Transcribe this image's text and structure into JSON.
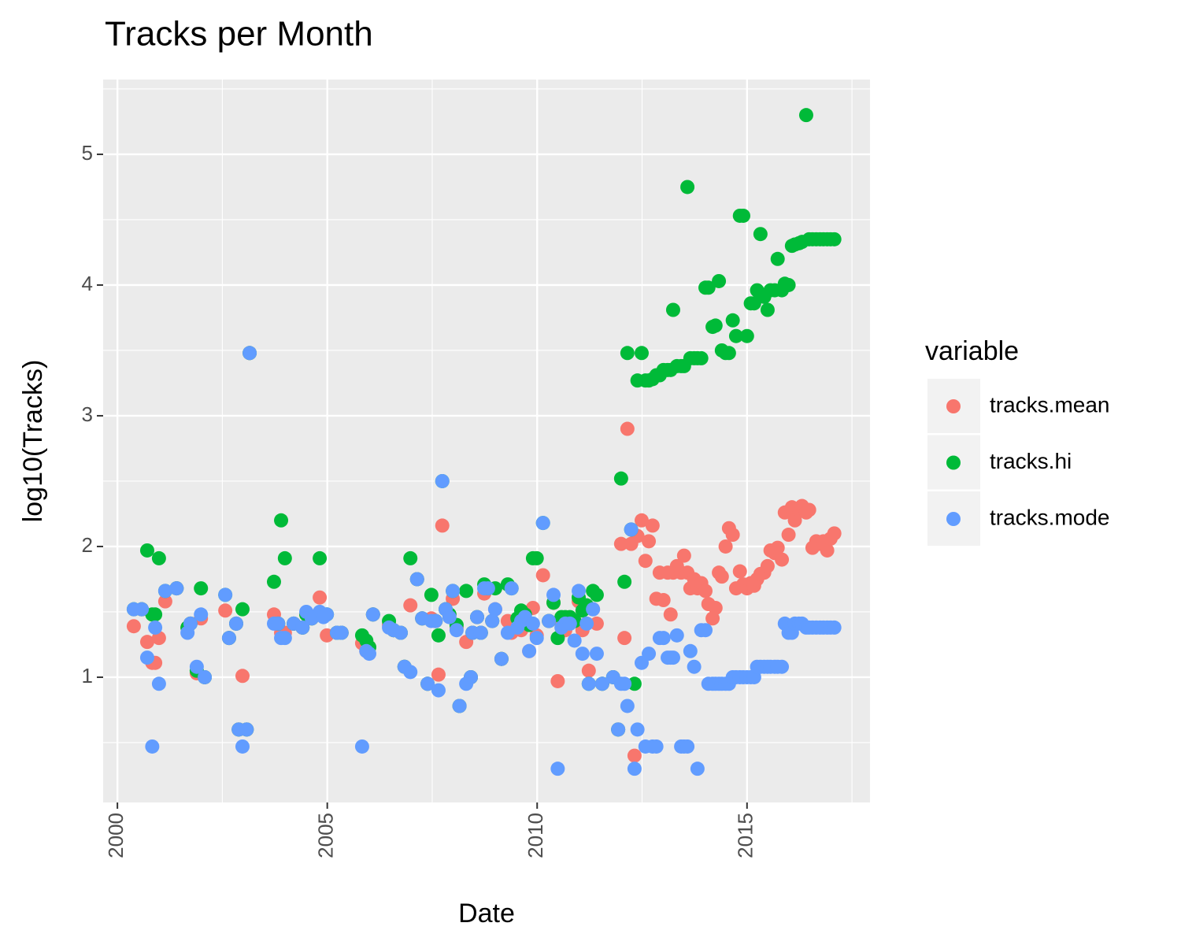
{
  "chart_data": {
    "type": "scatter",
    "title": "Tracks per Month",
    "x_label": "Date",
    "y_label": "log10(Tracks)",
    "legend_title": "variable",
    "legend_position": "right",
    "grid": true,
    "xlim": [
      1999.66,
      2017.93
    ],
    "ylim": [
      0.042,
      5.572
    ],
    "xticks": [
      2000,
      2005,
      2010,
      2015
    ],
    "yticks": [
      1,
      2,
      3,
      4,
      5
    ],
    "x": [
      2000.39,
      2000.58,
      2000.71,
      2000.83,
      2000.9,
      2000.99,
      2001.14,
      2001.41,
      2001.67,
      2001.74,
      2001.89,
      2001.99,
      2002.08,
      2002.57,
      2002.66,
      2002.83,
      2002.89,
      2002.98,
      2003.08,
      2003.15,
      2003.73,
      2003.83,
      2003.9,
      2003.99,
      2004.2,
      2004.41,
      2004.5,
      2004.63,
      2004.82,
      2004.91,
      2004.99,
      2005.23,
      2005.34,
      2005.83,
      2005.93,
      2006.0,
      2006.09,
      2006.47,
      2006.58,
      2006.75,
      2006.84,
      2006.98,
      2007.14,
      2007.26,
      2007.39,
      2007.48,
      2007.58,
      2007.65,
      2007.74,
      2007.82,
      2007.91,
      2007.99,
      2008.08,
      2008.15,
      2008.31,
      2008.42,
      2008.46,
      2008.57,
      2008.66,
      2008.74,
      2008.83,
      2008.93,
      2009.0,
      2009.15,
      2009.3,
      2009.39,
      2009.53,
      2009.62,
      2009.71,
      2009.81,
      2009.9,
      2009.99,
      2010.14,
      2010.28,
      2010.39,
      2010.49,
      2010.58,
      2010.67,
      2010.78,
      2010.89,
      2010.99,
      2011.08,
      2011.18,
      2011.23,
      2011.33,
      2011.42,
      2011.55,
      2011.81,
      2011.93,
      2012.0,
      2012.08,
      2012.15,
      2012.24,
      2012.32,
      2012.39,
      2012.49,
      2012.58,
      2012.66,
      2012.75,
      2012.84,
      2012.92,
      2013.01,
      2013.11,
      2013.18,
      2013.24,
      2013.33,
      2013.43,
      2013.5,
      2013.58,
      2013.65,
      2013.74,
      2013.82,
      2013.91,
      2014.01,
      2014.08,
      2014.18,
      2014.25,
      2014.33,
      2014.4,
      2014.49,
      2014.57,
      2014.66,
      2014.74,
      2014.83,
      2014.91,
      2015.0,
      2015.09,
      2015.17,
      2015.24,
      2015.32,
      2015.41,
      2015.49,
      2015.56,
      2015.66,
      2015.73,
      2015.83,
      2015.9,
      2015.99,
      2016.07,
      2016.14,
      2016.24,
      2016.31,
      2016.41,
      2016.48,
      2016.56,
      2016.65,
      2016.74,
      2016.82,
      2016.91,
      2016.99,
      2017.08
    ],
    "series": [
      {
        "name": "tracks.mean",
        "color": "#F8766D",
        "values": [
          1.39,
          1.52,
          1.27,
          1.11,
          1.11,
          1.3,
          1.58,
          1.68,
          1.38,
          1.41,
          1.03,
          1.45,
          1.0,
          1.51,
          1.3,
          1.41,
          0.6,
          1.01,
          0.6,
          3.48,
          1.48,
          1.41,
          1.34,
          1.34,
          1.41,
          1.38,
          1.48,
          1.45,
          1.61,
          1.48,
          1.32,
          1.34,
          1.34,
          1.26,
          1.2,
          1.23,
          1.48,
          1.4,
          1.36,
          1.34,
          1.08,
          1.55,
          1.75,
          1.45,
          0.95,
          1.45,
          1.43,
          1.02,
          2.16,
          1.52,
          1.48,
          1.6,
          1.38,
          0.78,
          1.27,
          1.0,
          1.34,
          1.46,
          1.34,
          1.64,
          1.68,
          1.43,
          1.52,
          1.14,
          1.43,
          1.34,
          1.4,
          1.36,
          1.4,
          1.2,
          1.53,
          1.32,
          1.78,
          1.43,
          1.57,
          0.97,
          1.41,
          1.36,
          1.41,
          1.43,
          1.58,
          1.36,
          1.41,
          1.05,
          1.52,
          1.41,
          0.95,
          1.0,
          0.6,
          2.02,
          1.3,
          2.9,
          2.02,
          0.4,
          2.08,
          2.2,
          1.89,
          2.04,
          2.16,
          1.6,
          1.8,
          1.59,
          1.8,
          1.48,
          1.8,
          1.85,
          1.8,
          1.93,
          1.8,
          1.68,
          1.75,
          1.68,
          1.72,
          1.66,
          1.56,
          1.45,
          1.53,
          1.8,
          1.77,
          2.0,
          2.14,
          2.09,
          1.68,
          1.81,
          1.71,
          1.68,
          1.72,
          1.7,
          1.75,
          1.79,
          1.8,
          1.85,
          1.97,
          1.95,
          1.99,
          1.9,
          2.26,
          2.09,
          2.3,
          2.2,
          2.28,
          2.31,
          2.26,
          2.28,
          1.99,
          2.04,
          2.02,
          2.04,
          1.97,
          2.06,
          2.1
        ]
      },
      {
        "name": "tracks.hi",
        "color": "#00BA38",
        "values": [
          1.52,
          1.52,
          1.97,
          1.48,
          1.48,
          1.91,
          1.66,
          1.68,
          1.38,
          1.41,
          1.05,
          1.68,
          1.0,
          1.63,
          1.3,
          1.41,
          0.6,
          1.52,
          0.6,
          3.48,
          1.73,
          1.41,
          2.2,
          1.91,
          1.41,
          1.38,
          1.48,
          1.45,
          1.91,
          1.48,
          1.48,
          1.34,
          1.34,
          1.32,
          1.28,
          1.23,
          1.48,
          1.43,
          1.36,
          1.34,
          1.08,
          1.91,
          1.75,
          1.45,
          0.95,
          1.63,
          1.43,
          1.32,
          2.5,
          1.52,
          1.48,
          1.66,
          1.4,
          0.78,
          1.66,
          1.0,
          1.34,
          1.46,
          1.34,
          1.71,
          1.68,
          1.43,
          1.68,
          1.14,
          1.71,
          1.68,
          1.45,
          1.51,
          1.48,
          1.4,
          1.91,
          1.91,
          2.18,
          1.43,
          1.57,
          1.3,
          1.46,
          1.46,
          1.46,
          1.43,
          1.61,
          1.51,
          1.55,
          0.95,
          1.66,
          1.63,
          0.95,
          1.0,
          0.6,
          2.52,
          1.73,
          3.48,
          2.13,
          0.95,
          3.27,
          3.48,
          3.27,
          3.27,
          3.28,
          3.31,
          3.31,
          3.35,
          3.35,
          3.35,
          3.81,
          3.38,
          3.38,
          3.38,
          4.75,
          3.44,
          3.44,
          3.44,
          3.44,
          3.98,
          3.98,
          3.68,
          3.69,
          4.03,
          3.5,
          3.48,
          3.48,
          3.73,
          3.61,
          4.53,
          4.53,
          3.61,
          3.86,
          3.86,
          3.96,
          4.39,
          3.91,
          3.81,
          3.96,
          3.96,
          4.2,
          3.96,
          4.01,
          4.0,
          4.3,
          4.31,
          4.32,
          4.33,
          5.3,
          4.35,
          4.35,
          4.35,
          4.35,
          4.35,
          4.35,
          4.35,
          4.35
        ]
      },
      {
        "name": "tracks.mode",
        "color": "#619CFF",
        "values": [
          1.52,
          1.52,
          1.15,
          0.47,
          1.38,
          0.95,
          1.66,
          1.68,
          1.34,
          1.41,
          1.08,
          1.48,
          1.0,
          1.63,
          1.3,
          1.41,
          0.6,
          0.47,
          0.6,
          3.48,
          1.41,
          1.41,
          1.3,
          1.3,
          1.41,
          1.38,
          1.5,
          1.45,
          1.5,
          1.46,
          1.48,
          1.34,
          1.34,
          0.47,
          1.2,
          1.18,
          1.48,
          1.38,
          1.36,
          1.34,
          1.08,
          1.04,
          1.75,
          1.45,
          0.95,
          1.43,
          1.43,
          0.9,
          2.5,
          1.52,
          1.46,
          1.66,
          1.36,
          0.78,
          0.95,
          1.0,
          1.34,
          1.46,
          1.34,
          1.68,
          1.68,
          1.43,
          1.52,
          1.14,
          1.34,
          1.68,
          1.38,
          1.43,
          1.46,
          1.2,
          1.41,
          1.3,
          2.18,
          1.43,
          1.63,
          0.3,
          1.38,
          1.41,
          1.41,
          1.28,
          1.66,
          1.18,
          1.41,
          0.95,
          1.52,
          1.18,
          0.95,
          1.0,
          0.6,
          0.95,
          0.95,
          0.78,
          2.13,
          0.3,
          0.6,
          1.11,
          0.47,
          1.18,
          0.47,
          0.47,
          1.3,
          1.3,
          1.15,
          1.15,
          1.15,
          1.32,
          0.47,
          0.47,
          0.47,
          1.2,
          1.08,
          0.3,
          1.36,
          1.36,
          0.95,
          0.95,
          0.95,
          0.95,
          0.95,
          0.95,
          0.95,
          1.0,
          1.0,
          1.0,
          1.0,
          1.0,
          1.0,
          1.0,
          1.08,
          1.08,
          1.08,
          1.08,
          1.08,
          1.08,
          1.08,
          1.08,
          1.41,
          1.34,
          1.34,
          1.41,
          1.41,
          1.41,
          1.38,
          1.38,
          1.38,
          1.38,
          1.38,
          1.38,
          1.38,
          1.38,
          1.38
        ]
      }
    ]
  }
}
